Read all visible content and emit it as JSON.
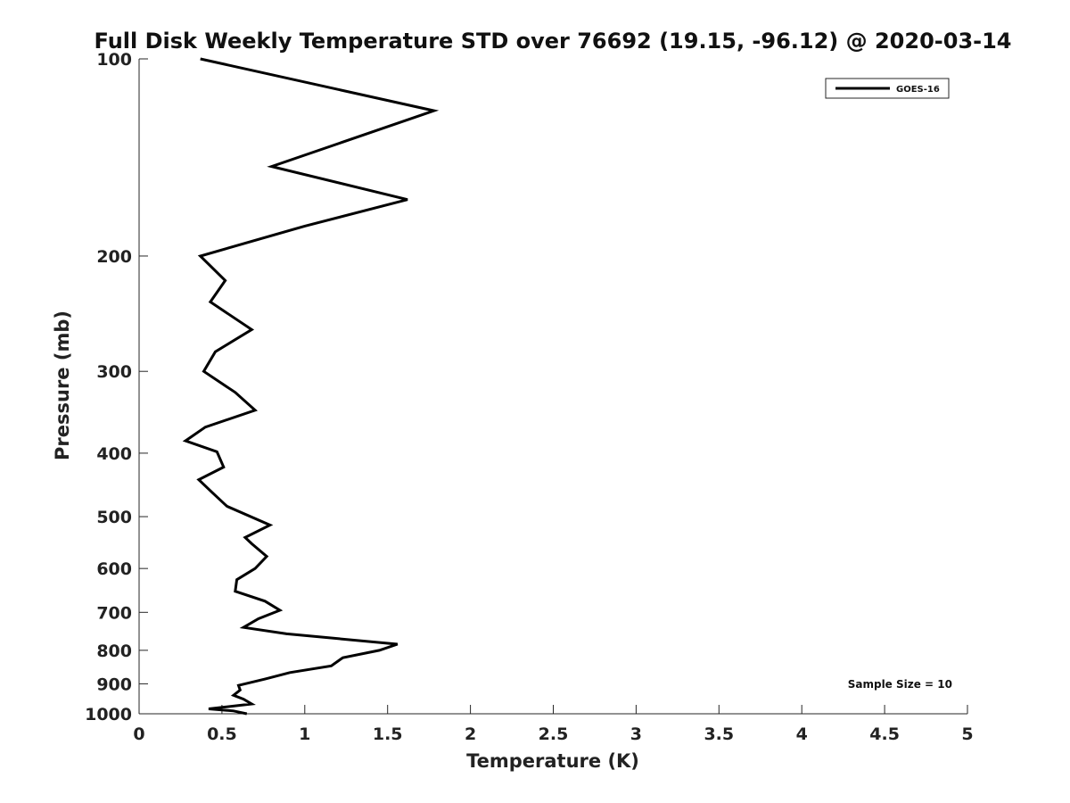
{
  "chart_data": {
    "type": "line",
    "title": "Full Disk Weekly Temperature STD over 76692 (19.15, -96.12) @ 2020-03-14",
    "xlabel": "Temperature (K)",
    "ylabel": "Pressure (mb)",
    "xlim": [
      0,
      5
    ],
    "ylim": [
      100,
      1000
    ],
    "y_scale": "log",
    "y_reversed": true,
    "grid": false,
    "x_ticks": [
      "0",
      "0.5",
      "1",
      "1.5",
      "2",
      "2.5",
      "3",
      "3.5",
      "4",
      "4.5",
      "5"
    ],
    "x_tick_values": [
      0,
      0.5,
      1,
      1.5,
      2,
      2.5,
      3,
      3.5,
      4,
      4.5,
      5
    ],
    "y_ticks": [
      "100",
      "200",
      "300",
      "400",
      "500",
      "600",
      "700",
      "800",
      "900",
      "1000"
    ],
    "y_tick_values": [
      100,
      200,
      300,
      400,
      500,
      600,
      700,
      800,
      900,
      1000
    ],
    "legend_position": "top-right",
    "series": [
      {
        "name": "GOES-16",
        "color": "#000000",
        "points": [
          [
            0.37,
            100
          ],
          [
            1.78,
            120
          ],
          [
            0.8,
            146
          ],
          [
            1.62,
            164
          ],
          [
            1.0,
            180
          ],
          [
            0.37,
            200
          ],
          [
            0.52,
            218
          ],
          [
            0.43,
            235
          ],
          [
            0.68,
            259
          ],
          [
            0.46,
            280
          ],
          [
            0.39,
            300
          ],
          [
            0.58,
            323
          ],
          [
            0.7,
            344
          ],
          [
            0.4,
            365
          ],
          [
            0.28,
            383
          ],
          [
            0.47,
            398
          ],
          [
            0.51,
            420
          ],
          [
            0.36,
            439
          ],
          [
            0.44,
            459
          ],
          [
            0.53,
            482
          ],
          [
            0.79,
            515
          ],
          [
            0.64,
            538
          ],
          [
            0.68,
            550
          ],
          [
            0.77,
            575
          ],
          [
            0.7,
            600
          ],
          [
            0.59,
            624
          ],
          [
            0.58,
            650
          ],
          [
            0.76,
            673
          ],
          [
            0.85,
            695
          ],
          [
            0.72,
            716
          ],
          [
            0.63,
            738
          ],
          [
            0.89,
            755
          ],
          [
            1.56,
            783
          ],
          [
            1.45,
            800
          ],
          [
            1.23,
            821
          ],
          [
            1.16,
            845
          ],
          [
            0.91,
            865
          ],
          [
            0.76,
            885
          ],
          [
            0.6,
            905
          ],
          [
            0.61,
            920
          ],
          [
            0.57,
            937
          ],
          [
            0.63,
            950
          ],
          [
            0.68,
            966
          ],
          [
            0.42,
            983
          ],
          [
            0.57,
            990
          ],
          [
            0.65,
            1000
          ]
        ]
      }
    ],
    "annotation": "Sample Size = 10"
  }
}
